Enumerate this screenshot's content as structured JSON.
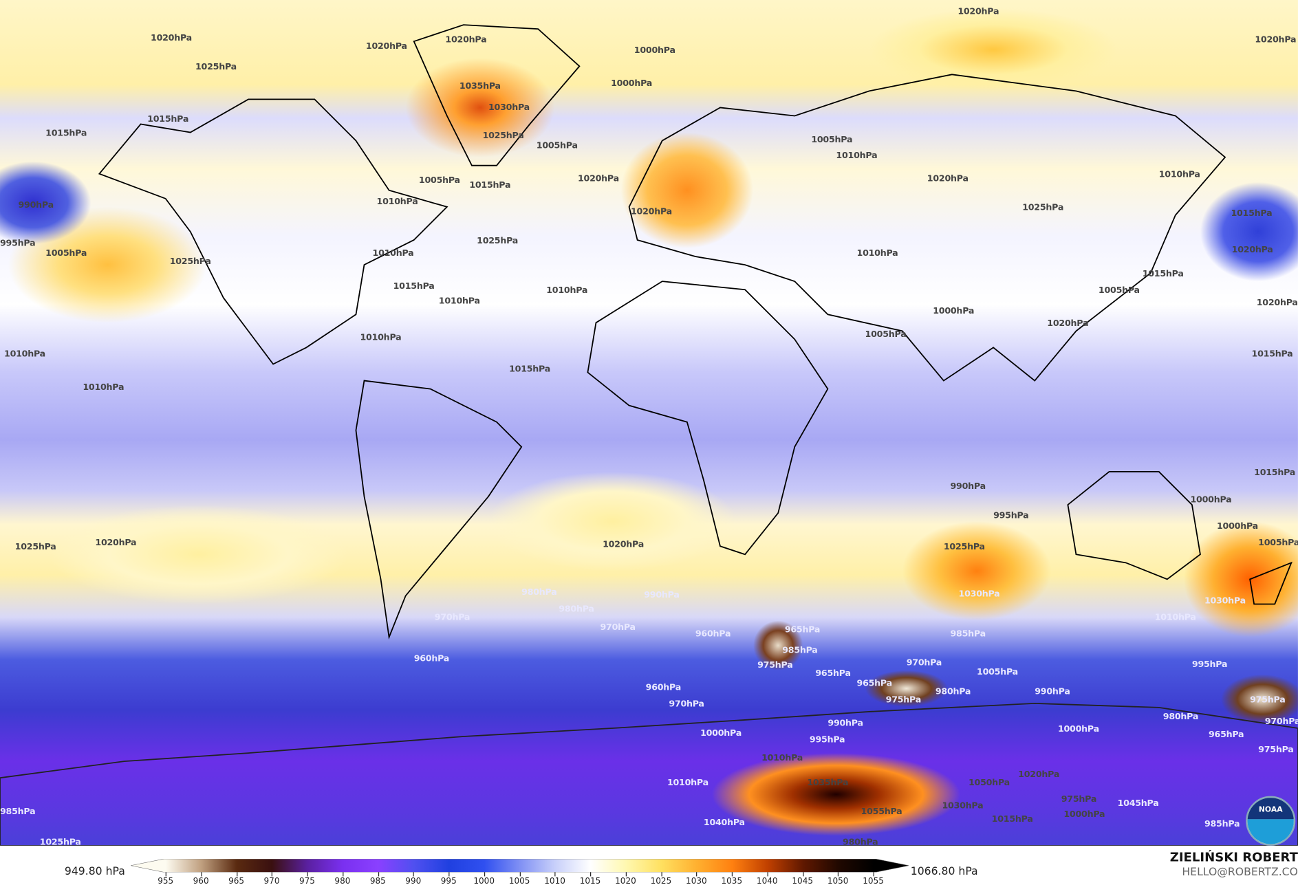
{
  "map": {
    "variable_unit": "hPa",
    "contour_labels": [
      "1020hPa",
      "1020hPa",
      "1020hPa",
      "1020hPa",
      "1025hPa",
      "1035hPa",
      "1030hPa",
      "1025hPa",
      "1020hPa",
      "1015hPa",
      "1000hPa",
      "1000hPa",
      "1005hPa",
      "1005hPa",
      "1010hPa",
      "1015hPa",
      "1020hPa",
      "1025hPa",
      "1020hPa",
      "1025hPa",
      "1020hPa",
      "1010hPa",
      "1010hPa",
      "1005hPa",
      "990hPa",
      "995hPa",
      "1005hPa",
      "1025hPa",
      "1015hPa",
      "1010hPa",
      "1015hPa",
      "1010hPa",
      "1010hPa",
      "1010hPa",
      "1015hPa",
      "1010hPa",
      "1020hPa",
      "1005hPa",
      "1005hPa",
      "1015hPa",
      "1000hPa",
      "1010hPa",
      "1015hPa",
      "1010hPa",
      "1020hPa",
      "1015hPa",
      "1020hPa",
      "1020hPa",
      "1025hPa",
      "1020hPa",
      "1025hPa",
      "1030hPa",
      "1030hPa",
      "1010hPa",
      "1015hPa",
      "1000hPa",
      "990hPa",
      "995hPa",
      "1000hPa",
      "1005hPa",
      "985hPa",
      "990hPa",
      "980hPa",
      "970hPa",
      "960hPa",
      "980hPa",
      "970hPa",
      "960hPa",
      "965hPa",
      "975hPa",
      "985hPa",
      "970hPa",
      "965hPa",
      "975hPa",
      "980hPa",
      "1005hPa",
      "990hPa",
      "995hPa",
      "965hPa",
      "960hPa",
      "975hPa",
      "970hPa",
      "965hPa",
      "980hPa",
      "975hPa",
      "970hPa",
      "985hPa",
      "995hPa",
      "1000hPa",
      "990hPa",
      "1000hPa",
      "975hPa",
      "985hPa",
      "1025hPa",
      "1010hPa",
      "1010hPa",
      "1040hPa",
      "1050hPa",
      "1055hPa",
      "1035hPa",
      "1030hPa",
      "1020hPa",
      "1015hPa",
      "1000hPa",
      "1045hPa",
      "980hPa"
    ],
    "logo": "NOAA"
  },
  "legend": {
    "min_label": "949.80 hPa",
    "max_label": "1066.80 hPa",
    "ticks": [
      "955",
      "960",
      "965",
      "970",
      "975",
      "980",
      "985",
      "990",
      "995",
      "1000",
      "1005",
      "1010",
      "1015",
      "1020",
      "1025",
      "1030",
      "1035",
      "1040",
      "1045",
      "1050",
      "1055"
    ],
    "colors": [
      "#fdfbf0",
      "#c0a080",
      "#5a2a10",
      "#3a1010",
      "#5a20a0",
      "#7a30f0",
      "#8a40ff",
      "#5050f0",
      "#2040e0",
      "#3050f0",
      "#8090f4",
      "#c8d0fa",
      "#ffffff",
      "#fff8b0",
      "#ffe060",
      "#ffb030",
      "#ff8010",
      "#c04000",
      "#601800",
      "#200800",
      "#000000"
    ]
  },
  "credit": {
    "author": "ZIELIŃSKI ROBERT",
    "email": "HELLO@ROBERTZ.CO"
  }
}
